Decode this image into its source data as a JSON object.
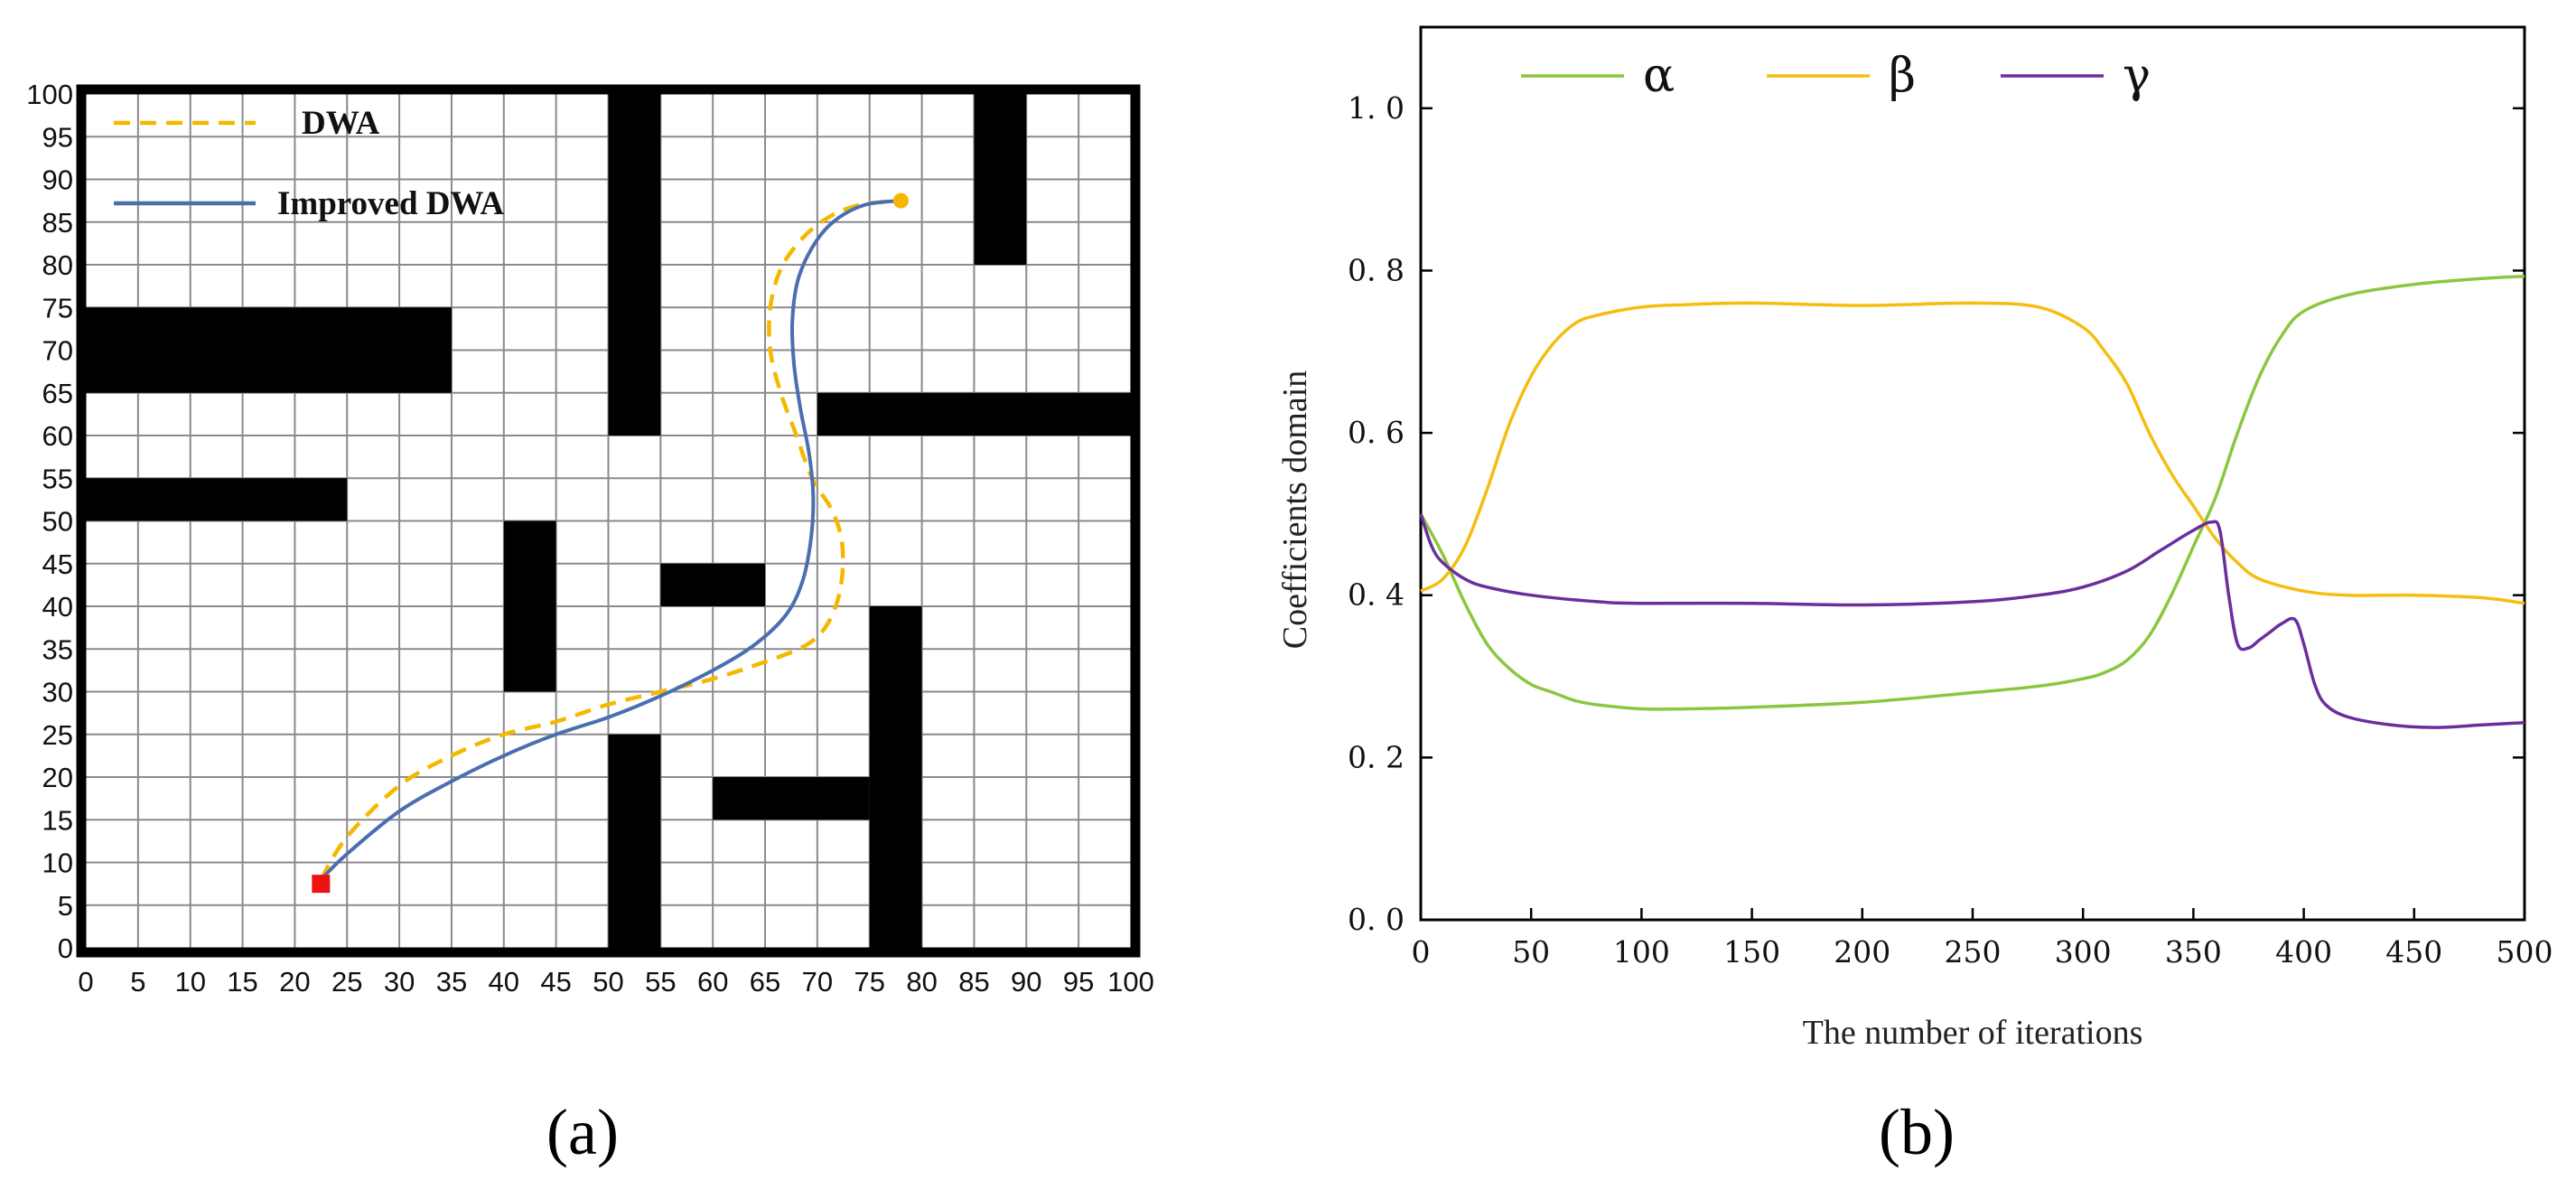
{
  "chart_data": [
    {
      "type": "line",
      "panel_label": "(a)",
      "xlim": [
        0,
        100
      ],
      "ylim": [
        0,
        100
      ],
      "xticks": [
        "0",
        "5",
        "10",
        "15",
        "20",
        "25",
        "30",
        "35",
        "40",
        "45",
        "50",
        "55",
        "60",
        "65",
        "70",
        "75",
        "80",
        "85",
        "90",
        "95",
        "100"
      ],
      "yticks": [
        "0",
        "5",
        "10",
        "15",
        "20",
        "25",
        "30",
        "35",
        "40",
        "45",
        "50",
        "55",
        "60",
        "65",
        "70",
        "75",
        "80",
        "85",
        "90",
        "95",
        "100"
      ],
      "grid": true,
      "legend": "top-left",
      "obstacles": [
        {
          "x": [
            0,
            35
          ],
          "y": [
            65,
            75
          ]
        },
        {
          "x": [
            0,
            25
          ],
          "y": [
            50,
            55
          ]
        },
        {
          "x": [
            50,
            55
          ],
          "y": [
            60,
            100
          ]
        },
        {
          "x": [
            40,
            45
          ],
          "y": [
            30,
            50
          ]
        },
        {
          "x": [
            55,
            65
          ],
          "y": [
            40,
            45
          ]
        },
        {
          "x": [
            50,
            55
          ],
          "y": [
            0,
            25
          ]
        },
        {
          "x": [
            60,
            75
          ],
          "y": [
            15,
            20
          ]
        },
        {
          "x": [
            75,
            80
          ],
          "y": [
            0,
            40
          ]
        },
        {
          "x": [
            70,
            100
          ],
          "y": [
            60,
            65
          ]
        },
        {
          "x": [
            85,
            90
          ],
          "y": [
            80,
            100
          ]
        }
      ],
      "start": {
        "x": 22.5,
        "y": 7.5,
        "color": "#ee1111"
      },
      "goal": {
        "x": 78,
        "y": 87.5,
        "color": "#f5b800"
      },
      "series": [
        {
          "name": "DWA",
          "color": "#f5b800",
          "style": "dashed",
          "x": [
            22.5,
            25,
            30,
            35,
            40,
            45,
            50,
            55,
            60,
            65,
            69,
            71,
            72.2,
            72.4,
            71.5,
            69.5,
            68,
            66.5,
            65.5,
            65.5,
            66.5,
            68.5,
            71,
            74,
            78
          ],
          "y": [
            8,
            13,
            19,
            22.5,
            25,
            26.5,
            28.5,
            30,
            31.5,
            33.5,
            35.5,
            38,
            42,
            47,
            51,
            55,
            60,
            65,
            70,
            75,
            79.5,
            83,
            85.5,
            87,
            87.5
          ]
        },
        {
          "name": "Improved DWA",
          "color": "#4a6fb0",
          "style": "solid",
          "x": [
            22.5,
            25,
            30,
            35,
            40,
            45,
            50,
            55,
            60,
            64,
            67,
            68.6,
            69.4,
            69.6,
            69.2,
            68.4,
            67.8,
            67.6,
            68.1,
            69.5,
            71.5,
            74.5,
            78
          ],
          "y": [
            8,
            11,
            16,
            19.5,
            22.5,
            25,
            27,
            29.5,
            32.5,
            35.5,
            39,
            43,
            48,
            53,
            58,
            63,
            68,
            73,
            78,
            82,
            85,
            87,
            87.5
          ]
        }
      ]
    },
    {
      "type": "line",
      "panel_label": "(b)",
      "xlabel": "The number of iterations",
      "ylabel": "Coefficients domain",
      "xlim": [
        0,
        500
      ],
      "ylim": [
        0,
        1.1
      ],
      "xticks": [
        "0",
        "50",
        "100",
        "150",
        "200",
        "250",
        "300",
        "350",
        "400",
        "450",
        "500"
      ],
      "yticks": [
        "0. 0",
        "0. 2",
        "0. 4",
        "0. 6",
        "0. 8",
        "1. 0"
      ],
      "grid": false,
      "legend": "top-left, horizontal",
      "series": [
        {
          "name": "α",
          "color": "#8cc63f",
          "x": [
            0,
            10,
            20,
            30,
            40,
            50,
            60,
            70,
            80,
            100,
            120,
            150,
            200,
            250,
            280,
            300,
            310,
            320,
            330,
            340,
            350,
            360,
            370,
            380,
            390,
            400,
            420,
            450,
            480,
            500
          ],
          "y": [
            0.5,
            0.45,
            0.39,
            0.34,
            0.31,
            0.29,
            0.28,
            0.27,
            0.265,
            0.26,
            0.26,
            0.262,
            0.268,
            0.28,
            0.288,
            0.297,
            0.305,
            0.32,
            0.35,
            0.4,
            0.46,
            0.52,
            0.6,
            0.67,
            0.72,
            0.75,
            0.77,
            0.783,
            0.79,
            0.793
          ]
        },
        {
          "name": "β",
          "color": "#f5bd10",
          "x": [
            0,
            10,
            20,
            30,
            40,
            50,
            60,
            70,
            80,
            100,
            120,
            150,
            200,
            250,
            280,
            300,
            310,
            320,
            330,
            340,
            350,
            360,
            370,
            380,
            400,
            420,
            450,
            480,
            500
          ],
          "y": [
            0.405,
            0.42,
            0.46,
            0.53,
            0.61,
            0.67,
            0.71,
            0.735,
            0.745,
            0.755,
            0.758,
            0.76,
            0.757,
            0.76,
            0.755,
            0.73,
            0.7,
            0.66,
            0.6,
            0.55,
            0.51,
            0.47,
            0.44,
            0.42,
            0.405,
            0.4,
            0.4,
            0.397,
            0.39
          ]
        },
        {
          "name": "γ",
          "color": "#6a2f9c",
          "x": [
            0,
            5,
            10,
            20,
            30,
            50,
            80,
            100,
            150,
            200,
            250,
            280,
            300,
            320,
            335,
            350,
            358,
            362,
            366,
            370,
            375,
            380,
            385,
            390,
            396,
            400,
            405,
            410,
            420,
            440,
            460,
            480,
            500
          ],
          "y": [
            0.5,
            0.46,
            0.44,
            0.42,
            0.41,
            0.4,
            0.392,
            0.39,
            0.39,
            0.388,
            0.392,
            0.4,
            0.41,
            0.43,
            0.455,
            0.48,
            0.49,
            0.48,
            0.4,
            0.34,
            0.335,
            0.345,
            0.355,
            0.365,
            0.37,
            0.34,
            0.29,
            0.265,
            0.25,
            0.24,
            0.237,
            0.24,
            0.243
          ]
        }
      ]
    }
  ]
}
